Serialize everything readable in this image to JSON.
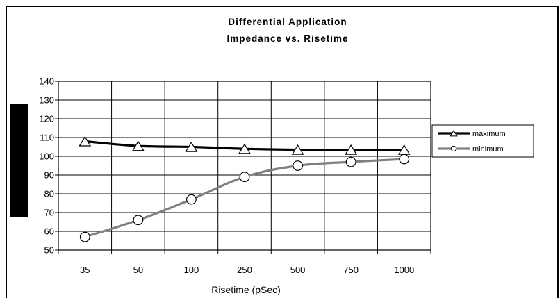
{
  "chart_data": {
    "type": "line",
    "title": [
      "Differential Application",
      "Impedance vs. Risetime"
    ],
    "xlabel": "Risetime (pSec)",
    "ylabel": "",
    "categories": [
      "35",
      "50",
      "100",
      "250",
      "500",
      "750",
      "1000"
    ],
    "ylim": [
      50,
      140
    ],
    "yticks": [
      50,
      60,
      70,
      80,
      90,
      100,
      110,
      120,
      130,
      140
    ],
    "grid": true,
    "legend_position": "right",
    "series": [
      {
        "name": "maximum",
        "values": [
          108,
          105.5,
          105,
          104,
          103.5,
          103.5,
          103.5
        ],
        "color": "#000000",
        "marker": "triangle"
      },
      {
        "name": "minimum",
        "values": [
          57,
          66,
          77,
          89,
          95,
          97,
          98.5
        ],
        "color": "#808080",
        "marker": "circle"
      }
    ]
  }
}
